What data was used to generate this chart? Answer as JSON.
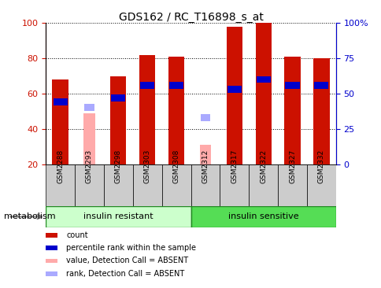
{
  "title": "GDS162 / RC_T16898_s_at",
  "samples": [
    "GSM2288",
    "GSM2293",
    "GSM2298",
    "GSM2303",
    "GSM2308",
    "GSM2312",
    "GSM2317",
    "GSM2322",
    "GSM2327",
    "GSM2332"
  ],
  "count_values": [
    68,
    0,
    70,
    82,
    81,
    0,
    98,
    100,
    81,
    80
  ],
  "count_absent": [
    0,
    49,
    0,
    0,
    0,
    31,
    0,
    0,
    0,
    0
  ],
  "rank_values": [
    44,
    0,
    47,
    56,
    56,
    0,
    53,
    60,
    56,
    56
  ],
  "rank_absent": [
    0,
    40,
    0,
    0,
    0,
    33,
    0,
    0,
    0,
    0
  ],
  "group1_label": "insulin resistant",
  "group2_label": "insulin sensitive",
  "group1_count": 5,
  "group_label_left": "metabolism",
  "ylim_left": [
    20,
    100
  ],
  "ylim_right": [
    0,
    100
  ],
  "yticks_left": [
    20,
    40,
    60,
    80,
    100
  ],
  "yticks_right": [
    0,
    25,
    50,
    75,
    100
  ],
  "ytick_labels_right": [
    "0",
    "25",
    "50",
    "75",
    "100%"
  ],
  "color_count": "#cc1100",
  "color_rank": "#0000cc",
  "color_absent_count": "#ffaaaa",
  "color_absent_rank": "#aaaaff",
  "color_group1_bg": "#ccffcc",
  "color_group2_bg": "#55dd55",
  "color_group_border": "#228822",
  "color_tick_bg": "#cccccc",
  "legend_items": [
    "count",
    "percentile rank within the sample",
    "value, Detection Call = ABSENT",
    "rank, Detection Call = ABSENT"
  ],
  "legend_colors": [
    "#cc1100",
    "#0000cc",
    "#ffaaaa",
    "#aaaaff"
  ]
}
